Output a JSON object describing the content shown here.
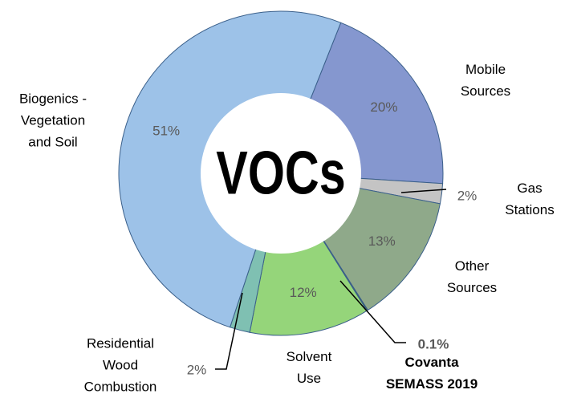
{
  "chart_data": {
    "type": "pie",
    "title": "VOCs",
    "categories": [
      "Mobile\nSources",
      "Gas\nStations",
      "Other\nSources",
      "Covanta\nSEMASS 2019",
      "Solvent\nUse",
      "Residential\nWood\nCombustion",
      "Biogenics -\nVegetation\nand Soil"
    ],
    "values": [
      20,
      2,
      13,
      0.1,
      12,
      2,
      51
    ],
    "value_labels": [
      "20%",
      "2%",
      "13%",
      "0.1%",
      "12%",
      "2%",
      "51%"
    ],
    "colors": [
      "#8597cf",
      "#c4c4c4",
      "#8fa98a",
      "#3d7a2e",
      "#95d57a",
      "#7fc0b2",
      "#9dc2e8"
    ]
  }
}
